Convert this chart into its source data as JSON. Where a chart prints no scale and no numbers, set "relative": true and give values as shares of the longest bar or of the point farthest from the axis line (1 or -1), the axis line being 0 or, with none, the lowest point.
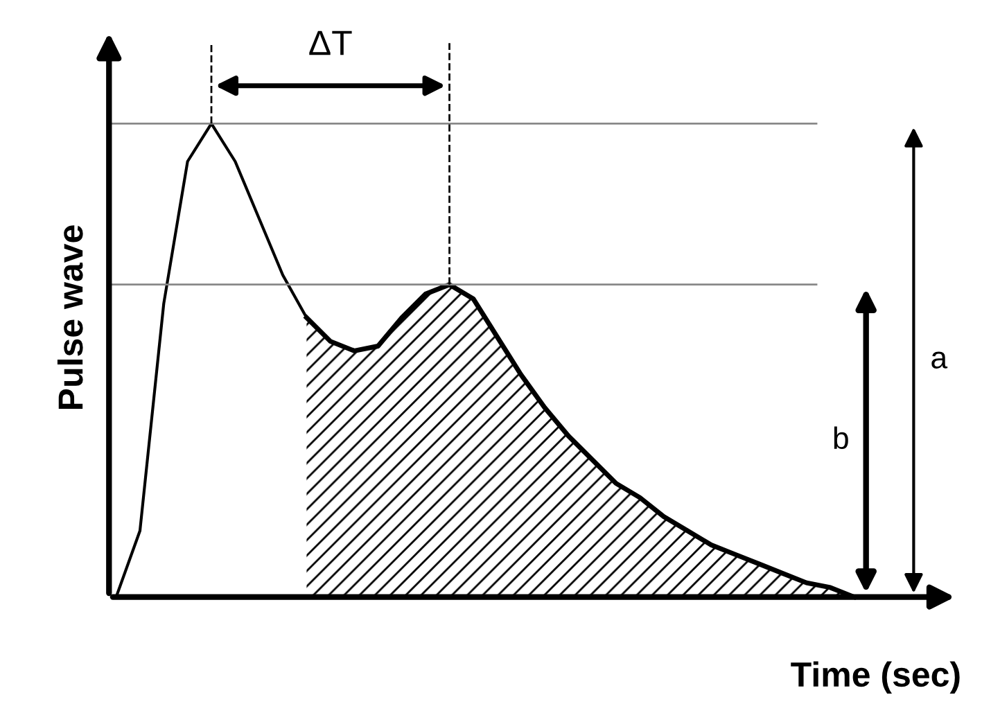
{
  "chart_data": {
    "type": "line",
    "relative": true,
    "xlabel": "Time (sec)",
    "ylabel": "Pulse wave",
    "categories": [
      null,
      null,
      null,
      null,
      null,
      null,
      null,
      null,
      null,
      null,
      null,
      null,
      null,
      null,
      null,
      null,
      null,
      null,
      null,
      null,
      null,
      null,
      null,
      null,
      null,
      null,
      null,
      null,
      null,
      null,
      null,
      null
    ],
    "series": [
      {
        "color": "#000000",
        "values": [
          0,
          0.14,
          0.62,
          0.92,
          1.0,
          0.92,
          0.8,
          0.68,
          0.59,
          0.54,
          0.52,
          0.53,
          0.59,
          0.64,
          0.66,
          0.63,
          0.55,
          0.47,
          0.4,
          0.34,
          0.29,
          0.24,
          0.21,
          0.17,
          0.14,
          0.11,
          0.09,
          0.07,
          0.05,
          0.03,
          0.02,
          0.0
        ]
      },
      {
        "type": "area",
        "color": "#000000",
        "values": [
          null,
          null,
          null,
          null,
          null,
          null,
          null,
          null,
          0.59,
          0.54,
          0.52,
          0.53,
          0.59,
          0.64,
          0.66,
          0.63,
          0.55,
          0.47,
          0.4,
          0.34,
          0.29,
          0.24,
          0.21,
          0.17,
          0.14,
          0.11,
          0.09,
          0.07,
          0.05,
          0.03,
          0.02,
          0.0
        ]
      }
    ],
    "ref_lines": [
      {
        "axis": "y",
        "value": 1.0,
        "color": "#888888"
      },
      {
        "axis": "y",
        "value": 0.66,
        "color": "#888888"
      }
    ],
    "annotations": [
      "ΔT",
      "a",
      "b"
    ],
    "grid": false,
    "legend": false
  }
}
